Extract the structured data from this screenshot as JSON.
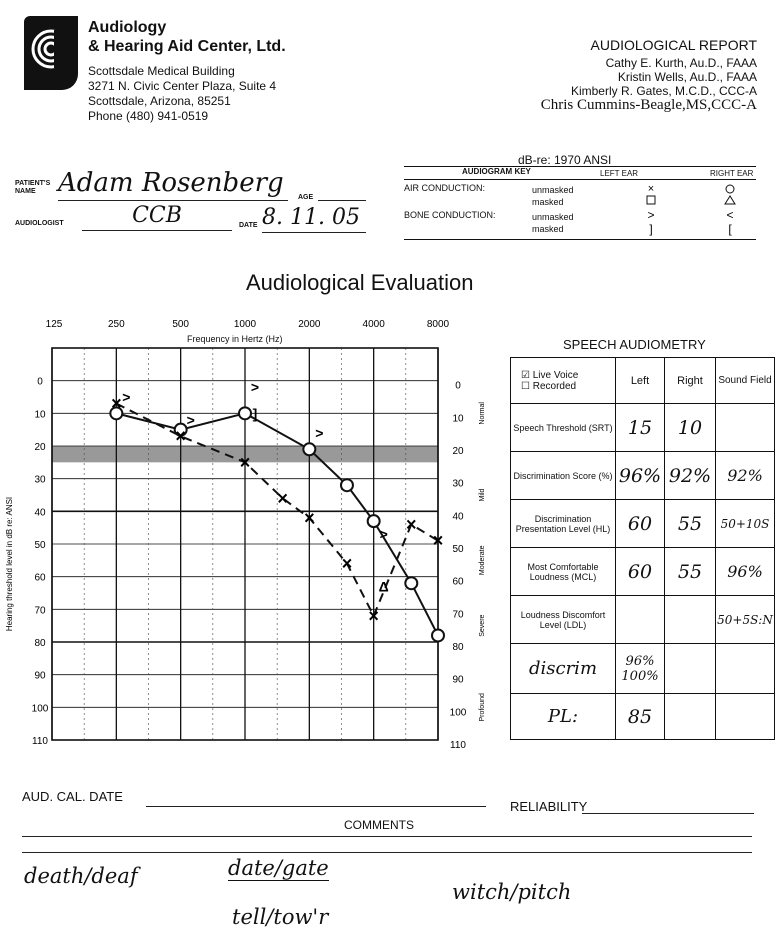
{
  "clinic": {
    "name_line1": "Audiology",
    "name_line2": "& Hearing Aid Center, Ltd.",
    "building": "Scottsdale Medical Building",
    "address": "3271 N. Civic Center Plaza, Suite 4",
    "city": "Scottsdale, Arizona, 85251",
    "phone": "Phone (480) 941-0519"
  },
  "report": {
    "title": "AUDIOLOGICAL REPORT",
    "staff": [
      "Cathy E. Kurth, Au.D., FAAA",
      "Kristin Wells, Au.D., FAAA",
      "Kimberly R. Gates, M.C.D., CCC-A",
      "Chris Cummins-Beagle,MS,CCC-A"
    ]
  },
  "patient": {
    "name_label": "PATIENT'S NAME",
    "name_value": "Adam Rosenberg",
    "age_label": "AGE",
    "age_value": "",
    "audiologist_label": "AUDIOLOGIST",
    "audiologist_value": "CCB",
    "date_label": "DATE",
    "date_value": "8. 11. 05"
  },
  "key": {
    "dbre": "dB-re: 1970 ANSI",
    "title": "AUDIOGRAM KEY",
    "left_ear": "LEFT EAR",
    "right_ear": "RIGHT EAR",
    "air": "AIR CONDUCTION:",
    "bone": "BONE CONDUCTION:",
    "unmasked": "unmasked",
    "masked": "masked"
  },
  "audiogram": {
    "title": "Audiological Evaluation",
    "x_label": "Frequency in Hertz (Hz)",
    "y_label": "Hearing threshold level in dB re: ANSI",
    "freq_labels": [
      "125",
      "250",
      "500",
      "1000",
      "2000",
      "4000",
      "8000"
    ],
    "db_labels": [
      "0",
      "10",
      "20",
      "30",
      "40",
      "50",
      "60",
      "70",
      "80",
      "90",
      "100",
      "110"
    ],
    "severity_labels": [
      "Normal",
      "Mild",
      "Moderate",
      "Severe",
      "Profound"
    ]
  },
  "chart_data": {
    "type": "line",
    "title": "Audiological Evaluation",
    "xlabel": "Frequency in Hertz (Hz)",
    "ylabel": "Hearing threshold level in dB re: ANSI",
    "x_ticks": [
      125,
      250,
      500,
      1000,
      2000,
      4000,
      8000
    ],
    "xscale": "log",
    "ylim": [
      -10,
      110
    ],
    "y_inverted": true,
    "grid": true,
    "series": [
      {
        "marker": "O",
        "x": [
          250,
          500,
          1000,
          2000,
          3000,
          4000,
          6000,
          8000
        ],
        "y": [
          10,
          15,
          10,
          21,
          32,
          43,
          62,
          78
        ]
      },
      {
        "marker": "X",
        "x": [
          250,
          500,
          1000,
          1500,
          2000,
          3000,
          4000,
          6000,
          8000
        ],
        "y": [
          7,
          17,
          25,
          36,
          42,
          56,
          72,
          44,
          49
        ]
      }
    ],
    "bone_marks": [
      {
        "marker": ">",
        "x": 250,
        "y": 5
      },
      {
        "marker": ">",
        "x": 500,
        "y": 12
      },
      {
        "marker": ">",
        "x": 1000,
        "y": 2
      },
      {
        "marker": "]",
        "x": 1000,
        "y": 10
      },
      {
        "marker": ">",
        "x": 2000,
        "y": 16
      },
      {
        "marker": ">",
        "x": 4000,
        "y": 47
      },
      {
        "marker": "Δ",
        "x": 4000,
        "y": 63
      }
    ]
  },
  "speech": {
    "title": "SPEECH AUDIOMETRY",
    "live_voice": "Live Voice",
    "recorded": "Recorded",
    "col_left": "Left",
    "col_right": "Right",
    "col_sound_field": "Sound Field",
    "rows": [
      {
        "label": "Speech Threshold (SRT)",
        "left": "15",
        "right": "10",
        "sf": ""
      },
      {
        "label": "Discrimination Score (%)",
        "left": "96%",
        "right": "92%",
        "sf": "92%"
      },
      {
        "label": "Discrimination Presentation Level (HL)",
        "left": "60",
        "right": "55",
        "sf": "50+10S"
      },
      {
        "label": "Most Comfortable Loudness (MCL)",
        "left": "60",
        "right": "55",
        "sf": "96%"
      },
      {
        "label": "Loudness Discomfort Level (LDL)",
        "left": "",
        "right": "",
        "sf": "50+5S:N"
      },
      {
        "label": "discrim",
        "left": "96% 100%",
        "right": "",
        "sf": ""
      },
      {
        "label": "PL:",
        "left": "85",
        "right": "",
        "sf": ""
      }
    ]
  },
  "footer": {
    "cal_date_label": "AUD. CAL. DATE",
    "reliability_label": "RELIABILITY",
    "comments_label": "COMMENTS"
  },
  "handwritten_notes": [
    "death/deaf",
    "date/gate",
    "tell/tow'r",
    "witch/pitch"
  ]
}
